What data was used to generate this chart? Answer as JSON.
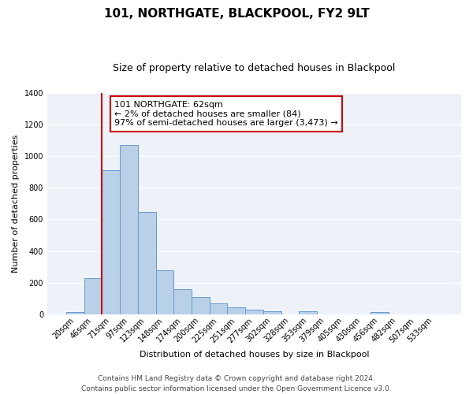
{
  "title": "101, NORTHGATE, BLACKPOOL, FY2 9LT",
  "subtitle": "Size of property relative to detached houses in Blackpool",
  "xlabel": "Distribution of detached houses by size in Blackpool",
  "ylabel": "Number of detached properties",
  "bar_labels": [
    "20sqm",
    "46sqm",
    "71sqm",
    "97sqm",
    "123sqm",
    "148sqm",
    "174sqm",
    "200sqm",
    "225sqm",
    "251sqm",
    "277sqm",
    "302sqm",
    "328sqm",
    "353sqm",
    "379sqm",
    "405sqm",
    "430sqm",
    "456sqm",
    "482sqm",
    "507sqm",
    "533sqm"
  ],
  "bar_values": [
    15,
    228,
    910,
    1070,
    645,
    280,
    158,
    107,
    68,
    42,
    27,
    18,
    0,
    18,
    0,
    0,
    0,
    12,
    0,
    0,
    0
  ],
  "bar_color": "#b8d0e8",
  "bar_edge_color": "#6699cc",
  "ylim": [
    0,
    1400
  ],
  "yticks": [
    0,
    200,
    400,
    600,
    800,
    1000,
    1200,
    1400
  ],
  "vline_color": "#cc0000",
  "vline_x_index": 1.5,
  "annotation_text": "101 NORTHGATE: 62sqm\n← 2% of detached houses are smaller (84)\n97% of semi-detached houses are larger (3,473) →",
  "annotation_box_color": "#ffffff",
  "annotation_box_edge_color": "#cc0000",
  "footer_line1": "Contains HM Land Registry data © Crown copyright and database right 2024.",
  "footer_line2": "Contains public sector information licensed under the Open Government Licence v3.0.",
  "background_color": "#edf2f9",
  "grid_color": "#ffffff",
  "title_fontsize": 11,
  "subtitle_fontsize": 9,
  "ylabel_fontsize": 8,
  "xlabel_fontsize": 8,
  "tick_fontsize": 7,
  "annotation_fontsize": 8,
  "footer_fontsize": 6.5
}
